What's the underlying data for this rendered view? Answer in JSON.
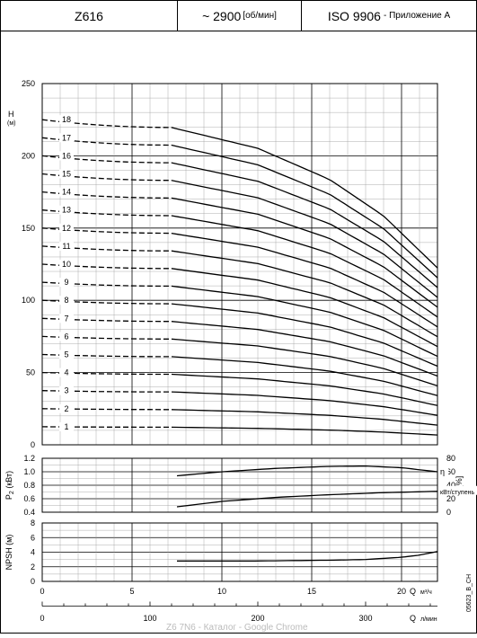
{
  "header": {
    "model": "Z616",
    "speed_value": "~ 2900",
    "speed_unit": "[об/мин]",
    "standard": "ISO 9906",
    "standard_note": "- Приложение A"
  },
  "figure_code": "05623_B_CH",
  "watermark": "Z6 7N6 - Каталог - Google Chrome",
  "colors": {
    "curve": "#000000",
    "grid_major": "#000000",
    "grid_minor": "#999999",
    "border": "#000000"
  },
  "chart_data": [
    {
      "type": "line",
      "ylabel": "H",
      "yunit": "(м)",
      "ylim": [
        0,
        250
      ],
      "yticks": [
        0,
        50,
        100,
        150,
        200,
        250
      ],
      "xlim": [
        0,
        22
      ],
      "grid": true,
      "q_start": 7.2,
      "q_end": 22,
      "shutoff_head_per_stage": 12.5,
      "series": [
        {
          "name": "1",
          "stages": 1,
          "x": [
            7.2,
            12,
            16,
            19,
            22
          ],
          "y": [
            12.2,
            11.4,
            10.2,
            8.8,
            6.8
          ]
        },
        {
          "name": "2",
          "stages": 2,
          "x": [
            7.2,
            12,
            16,
            19,
            22
          ],
          "y": [
            24.4,
            22.8,
            20.4,
            17.6,
            13.6
          ]
        },
        {
          "name": "3",
          "stages": 3,
          "x": [
            7.2,
            12,
            16,
            19,
            22
          ],
          "y": [
            36.6,
            34.2,
            30.6,
            26.4,
            20.4
          ]
        },
        {
          "name": "4",
          "stages": 4,
          "x": [
            7.2,
            12,
            16,
            19,
            22
          ],
          "y": [
            48.8,
            45.6,
            40.8,
            35.2,
            27.2
          ]
        },
        {
          "name": "5",
          "stages": 5,
          "x": [
            7.2,
            12,
            16,
            19,
            22
          ],
          "y": [
            61,
            57,
            51,
            44,
            34
          ]
        },
        {
          "name": "6",
          "stages": 6,
          "x": [
            7.2,
            12,
            16,
            19,
            22
          ],
          "y": [
            73.2,
            68.4,
            61.2,
            52.8,
            40.8
          ]
        },
        {
          "name": "7",
          "stages": 7,
          "x": [
            7.2,
            12,
            16,
            19,
            22
          ],
          "y": [
            85.4,
            79.8,
            71.4,
            61.6,
            47.6
          ]
        },
        {
          "name": "8",
          "stages": 8,
          "x": [
            7.2,
            12,
            16,
            19,
            22
          ],
          "y": [
            97.6,
            91.2,
            81.6,
            70.4,
            54.4
          ]
        },
        {
          "name": "9",
          "stages": 9,
          "x": [
            7.2,
            12,
            16,
            19,
            22
          ],
          "y": [
            109.8,
            102.6,
            91.8,
            79.2,
            61.2
          ]
        },
        {
          "name": "10",
          "stages": 10,
          "x": [
            7.2,
            12,
            16,
            19,
            22
          ],
          "y": [
            122,
            114,
            102,
            88,
            68
          ]
        },
        {
          "name": "11",
          "stages": 11,
          "x": [
            7.2,
            12,
            16,
            19,
            22
          ],
          "y": [
            134.2,
            125.4,
            112.2,
            96.8,
            74.8
          ]
        },
        {
          "name": "12",
          "stages": 12,
          "x": [
            7.2,
            12,
            16,
            19,
            22
          ],
          "y": [
            146.4,
            136.8,
            122.4,
            105.6,
            81.6
          ]
        },
        {
          "name": "13",
          "stages": 13,
          "x": [
            7.2,
            12,
            16,
            19,
            22
          ],
          "y": [
            158.6,
            148.2,
            132.6,
            114.4,
            88.4
          ]
        },
        {
          "name": "14",
          "stages": 14,
          "x": [
            7.2,
            12,
            16,
            19,
            22
          ],
          "y": [
            170.8,
            159.6,
            142.8,
            123.2,
            95.2
          ]
        },
        {
          "name": "15",
          "stages": 15,
          "x": [
            7.2,
            12,
            16,
            19,
            22
          ],
          "y": [
            183,
            171,
            153,
            132,
            102
          ]
        },
        {
          "name": "16",
          "stages": 16,
          "x": [
            7.2,
            12,
            16,
            19,
            22
          ],
          "y": [
            195.2,
            182.4,
            163.2,
            140.8,
            108.8
          ]
        },
        {
          "name": "17",
          "stages": 17,
          "x": [
            7.2,
            12,
            16,
            19,
            22
          ],
          "y": [
            207.4,
            193.8,
            173.4,
            149.6,
            115.6
          ]
        },
        {
          "name": "18",
          "stages": 18,
          "x": [
            7.2,
            12,
            16,
            19,
            22
          ],
          "y": [
            219.6,
            205.2,
            183.6,
            158.4,
            122.4
          ]
        }
      ]
    },
    {
      "type": "line",
      "ylabel": "P2 (кВт)",
      "ylabel_base": "P",
      "ylabel_sub": "2",
      "ylabel_unit": " (кВт)",
      "ylim": [
        0.4,
        1.2
      ],
      "yticks": [
        0.4,
        0.6,
        0.8,
        1.0,
        1.2
      ],
      "y2label": "η [%]",
      "y2lim": [
        0,
        80
      ],
      "y2ticks": [
        0,
        20,
        40,
        60,
        80
      ],
      "xlim": [
        0,
        22
      ],
      "grid": true,
      "series": [
        {
          "name": "η",
          "axis": "right",
          "x": [
            7.5,
            10,
            13,
            16,
            18,
            20,
            22
          ],
          "y": [
            54,
            60,
            65,
            68,
            68.5,
            66,
            60
          ]
        },
        {
          "name": "кВт/ступень",
          "axis": "left",
          "x": [
            7.5,
            10,
            13,
            16,
            19,
            22
          ],
          "y": [
            0.48,
            0.56,
            0.62,
            0.66,
            0.69,
            0.71
          ]
        }
      ]
    },
    {
      "type": "line",
      "ylabel": "NPSH (м)",
      "ylim": [
        0,
        8
      ],
      "yticks": [
        0,
        2,
        4,
        6,
        8
      ],
      "xlim": [
        0,
        22
      ],
      "xticks": [
        0,
        5,
        10,
        15,
        20
      ],
      "xlabel": "Q",
      "xunit": "м³/ч",
      "x2label": "Q",
      "x2unit": "л/мин",
      "x2ticks": [
        0,
        100,
        200,
        300
      ],
      "grid": true,
      "series": [
        {
          "name": "NPSH",
          "x": [
            7.5,
            12,
            16,
            18,
            20,
            21,
            22
          ],
          "y": [
            2.8,
            2.8,
            2.9,
            3.0,
            3.3,
            3.6,
            4.1
          ]
        }
      ]
    }
  ]
}
